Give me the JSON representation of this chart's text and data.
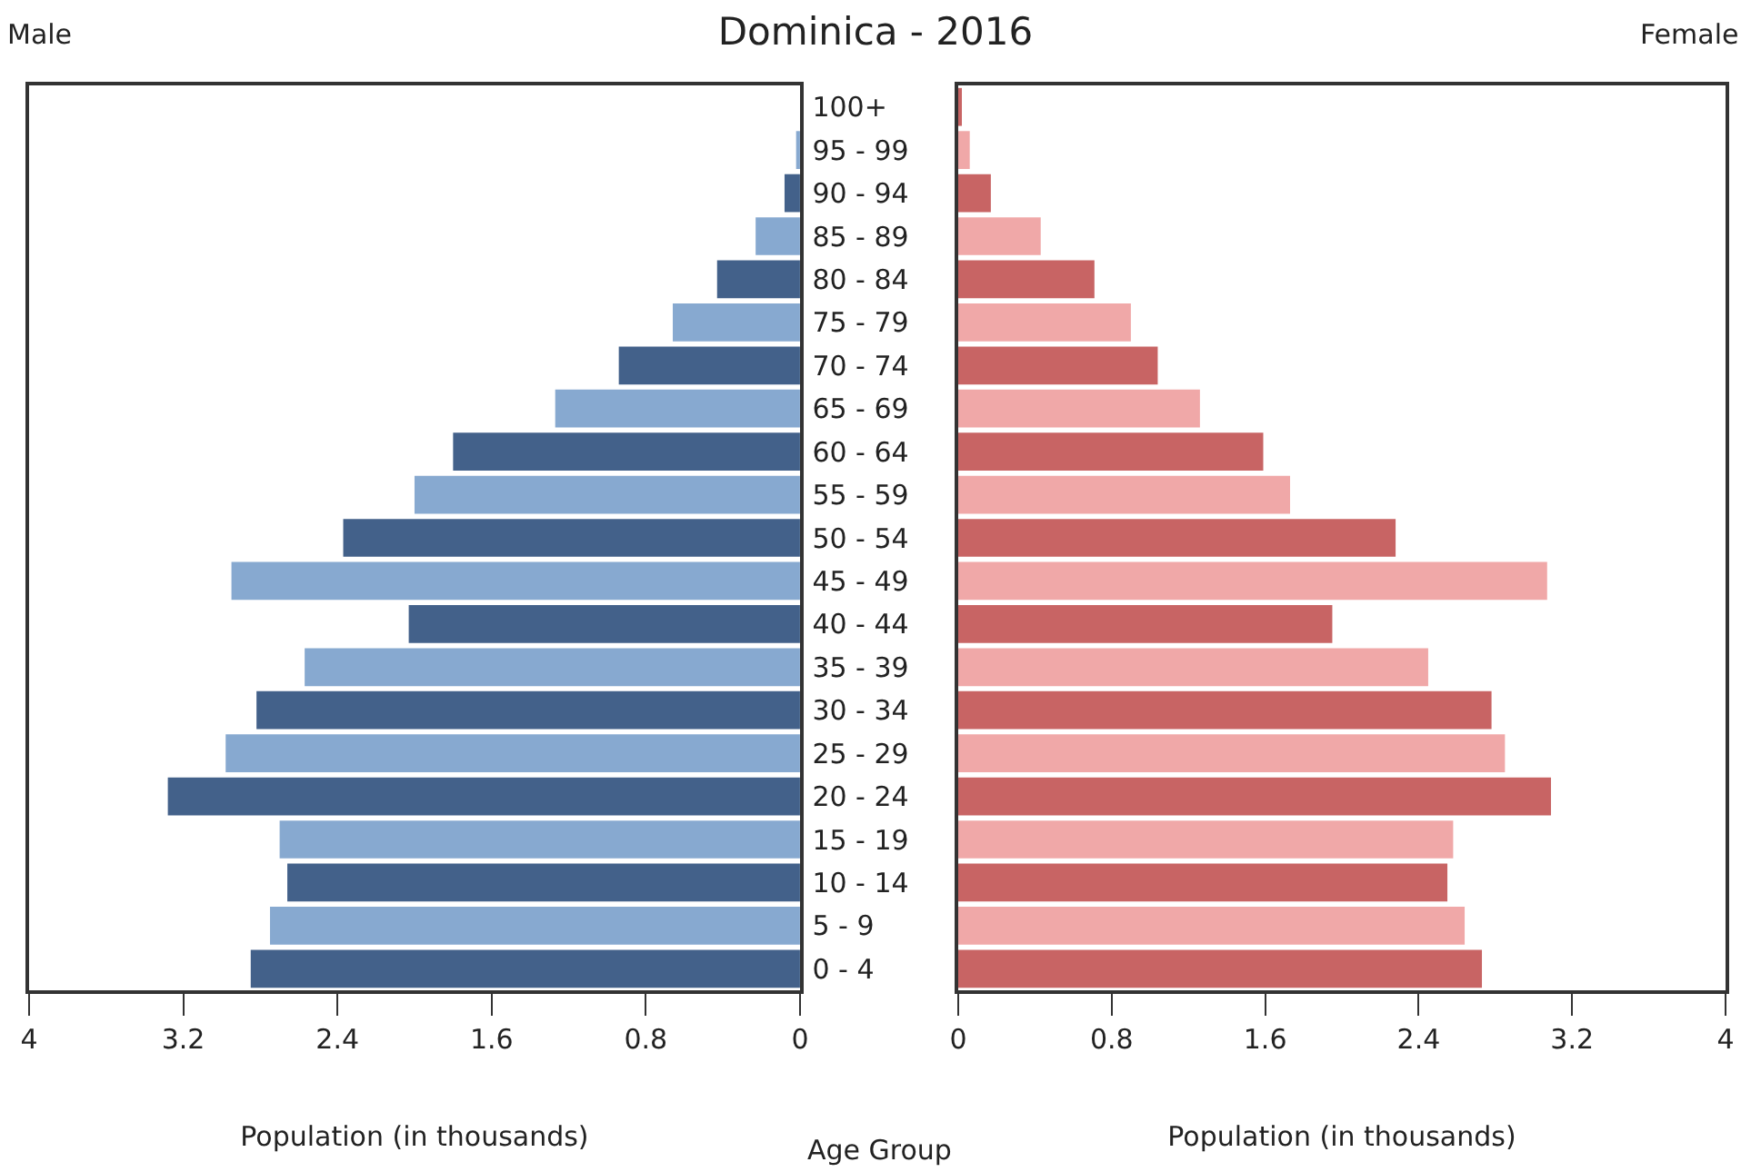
{
  "chart_data": [
    {
      "type": "bar",
      "orientation": "horizontal",
      "title": "Dominica - 2016",
      "xlabel": "Population (in thousands)",
      "ylabel": "Age Group",
      "categories": [
        "100+",
        "95 - 99",
        "90 - 94",
        "85 - 89",
        "80 - 84",
        "75 - 79",
        "70 - 74",
        "65 - 69",
        "60 - 64",
        "55 - 59",
        "50 - 54",
        "45 - 49",
        "40 - 44",
        "35 - 39",
        "30 - 34",
        "25 - 29",
        "20 - 24",
        "15 - 19",
        "10 - 14",
        "5 - 9",
        "0 - 4"
      ],
      "series": [
        {
          "name": "Male",
          "colors": [
            "#87a9d0",
            "#87a9d0",
            "#43618a",
            "#87a9d0",
            "#43618a",
            "#87a9d0",
            "#43618a",
            "#87a9d0",
            "#43618a",
            "#87a9d0",
            "#43618a",
            "#87a9d0",
            "#43618a",
            "#87a9d0",
            "#43618a",
            "#87a9d0",
            "#43618a",
            "#87a9d0",
            "#43618a",
            "#87a9d0",
            "#43618a"
          ],
          "values": [
            0,
            0.02,
            0.08,
            0.23,
            0.43,
            0.66,
            0.94,
            1.27,
            1.8,
            2.0,
            2.37,
            2.95,
            2.03,
            2.57,
            2.82,
            2.98,
            3.28,
            2.7,
            2.66,
            2.75,
            2.85
          ]
        }
      ],
      "xlim": [
        4,
        0
      ],
      "xticks": [
        4,
        3.2,
        2.4,
        1.6,
        0.8,
        0
      ]
    },
    {
      "type": "bar",
      "orientation": "horizontal",
      "xlabel": "Population (in thousands)",
      "tick_labels": "x",
      "categories": [
        null,
        null,
        null,
        null,
        null,
        null,
        null,
        null,
        null,
        null,
        null,
        null,
        null,
        null,
        null,
        null,
        null,
        null,
        null,
        null,
        null
      ],
      "series": [
        {
          "name": "Female",
          "colors": [
            "#c86464",
            "#f0a8a8",
            "#c86464",
            "#f0a8a8",
            "#c86464",
            "#f0a8a8",
            "#c86464",
            "#f0a8a8",
            "#c86464",
            "#f0a8a8",
            "#c86464",
            "#f0a8a8",
            "#c86464",
            "#f0a8a8",
            "#c86464",
            "#f0a8a8",
            "#c86464",
            "#f0a8a8",
            "#c86464",
            "#f0a8a8",
            "#c86464"
          ],
          "values": [
            0.01,
            0.06,
            0.17,
            0.43,
            0.71,
            0.9,
            1.04,
            1.26,
            1.59,
            1.73,
            2.28,
            3.07,
            1.95,
            2.45,
            2.78,
            2.85,
            3.09,
            2.58,
            2.55,
            2.64,
            2.73
          ]
        }
      ],
      "xlim": [
        0,
        4
      ],
      "xticks": [
        0,
        0.8,
        1.6,
        2.4,
        3.2,
        4
      ]
    }
  ]
}
